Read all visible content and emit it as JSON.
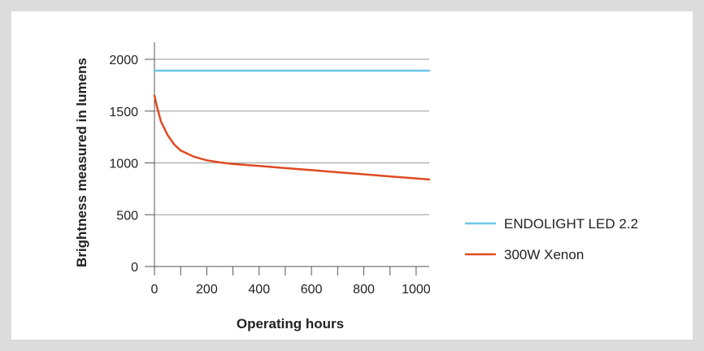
{
  "chart_data": {
    "type": "line",
    "xlabel": "Operating hours",
    "ylabel": "Brightness measured in lumens",
    "xlim": [
      0,
      1050
    ],
    "ylim": [
      0,
      2000
    ],
    "x_ticks": [
      0,
      200,
      400,
      600,
      800,
      1000
    ],
    "x_minor_step": 100,
    "y_ticks": [
      0,
      500,
      1000,
      1500,
      2000
    ],
    "grid": "horizontal",
    "legend_position": "right",
    "series": [
      {
        "name": "ENDOLIGHT LED 2.2",
        "color": "#6cc6e8",
        "x": [
          0,
          1050
        ],
        "y": [
          1890,
          1890
        ]
      },
      {
        "name": "300W Xenon",
        "color": "#e04a22",
        "x": [
          0,
          10,
          25,
          50,
          75,
          100,
          150,
          200,
          250,
          300,
          400,
          500,
          600,
          700,
          800,
          900,
          1000,
          1050
        ],
        "y": [
          1650,
          1540,
          1400,
          1270,
          1180,
          1120,
          1060,
          1025,
          1005,
          990,
          970,
          950,
          930,
          910,
          890,
          870,
          850,
          840
        ]
      }
    ]
  }
}
